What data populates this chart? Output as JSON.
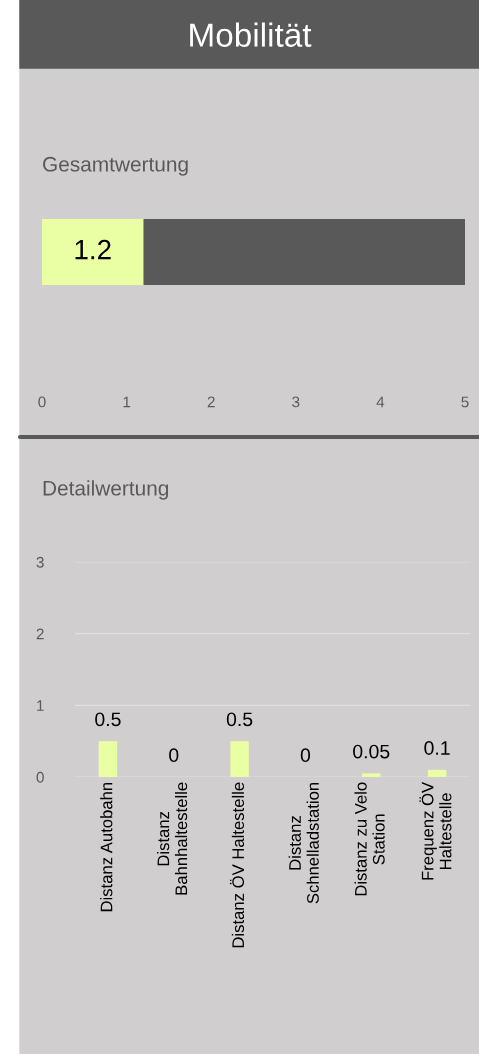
{
  "chart_data": [
    {
      "type": "bar",
      "title": "Mobilität",
      "subtitle": "Gesamtwertung",
      "orientation": "horizontal",
      "stacked": true,
      "categories": [
        null
      ],
      "series": [
        {
          "color": "#eaffa4",
          "values": [
            1.2
          ],
          "value_labels": [
            "1.2"
          ]
        },
        {
          "color": "#595959",
          "values": [
            3.8
          ],
          "value_labels": [
            null
          ]
        }
      ],
      "xlim": [
        0,
        5
      ],
      "xticks": [
        0,
        1,
        2,
        3,
        4,
        5
      ],
      "grid": false,
      "tick_labels": "x"
    },
    {
      "type": "bar",
      "title": "Detailwertung",
      "categories": [
        "Distanz Autobahn",
        "Distanz Bahnhaltestelle",
        "Distanz ÖV Haltestelle",
        "Distanz Schnelladstation",
        "Distanz zu Velo Station",
        "Frequenz ÖV Haltestelle"
      ],
      "values": [
        0.5,
        0,
        0.5,
        0,
        0.05,
        0.1
      ],
      "color": "#eaffa4",
      "data_labels": true,
      "ylim": [
        0,
        3
      ],
      "yticks": [
        0,
        1,
        2,
        3
      ],
      "grid": "y"
    }
  ]
}
